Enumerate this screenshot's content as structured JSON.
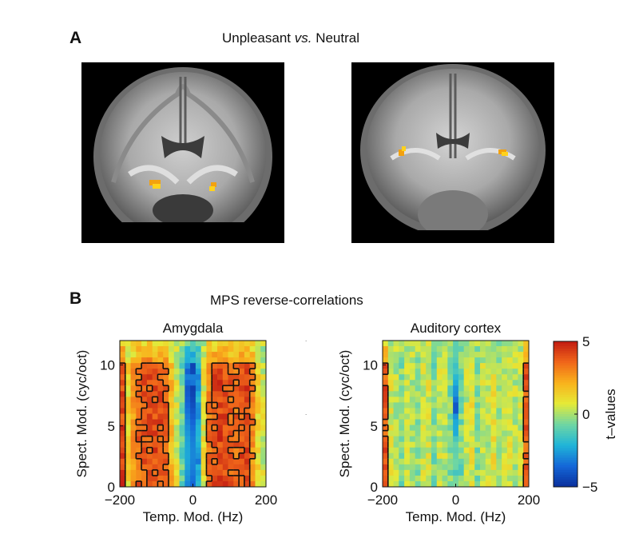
{
  "figure": {
    "panel_a": {
      "letter": "A",
      "title_prefix": "Unpleasant ",
      "title_italic": "vs.",
      "title_suffix": " Neutral"
    },
    "panel_b": {
      "letter": "B",
      "title": "MPS reverse-correlations"
    }
  },
  "chart_data": [
    {
      "type": "heatmap",
      "title": "Amygdala",
      "xlabel": "Temp. Mod. (Hz)",
      "ylabel": "Spect. Mod. (cyc/oct)",
      "xlim": [
        -200,
        200
      ],
      "ylim": [
        0,
        12
      ],
      "xticks": [
        "−200",
        "0",
        "200"
      ],
      "yticks": [
        "0",
        "5",
        "10"
      ],
      "x_columns": [
        -193,
        -178,
        -163,
        -148,
        -133,
        -118,
        -104,
        -89,
        -74,
        -59,
        -44,
        -30,
        -15,
        0,
        15,
        30,
        44,
        59,
        74,
        89,
        104,
        118,
        133,
        148,
        163,
        178,
        193
      ],
      "column_profile_t": [
        4.2,
        1.2,
        2.5,
        3.6,
        3.8,
        3.9,
        4.1,
        4.0,
        3.6,
        2.0,
        0.6,
        -0.8,
        -3.2,
        -3.8,
        -2.6,
        0.8,
        3.3,
        3.9,
        4.2,
        4.0,
        3.7,
        3.5,
        3.9,
        4.1,
        3.0,
        1.2,
        0.5
      ],
      "contour_t": 3.4
    },
    {
      "type": "heatmap",
      "title": "Auditory cortex",
      "xlabel": "Temp. Mod. (Hz)",
      "ylabel": "Spect. Mod. (cyc/oct)",
      "xlim": [
        -200,
        200
      ],
      "ylim": [
        0,
        12
      ],
      "xticks": [
        "−200",
        "0",
        "200"
      ],
      "yticks": [
        "0",
        "5",
        "10"
      ],
      "x_columns": [
        -193,
        -178,
        -163,
        -148,
        -133,
        -118,
        -104,
        -89,
        -74,
        -59,
        -44,
        -30,
        -15,
        0,
        15,
        30,
        44,
        59,
        74,
        89,
        104,
        118,
        133,
        148,
        163,
        178,
        193
      ],
      "column_profile_t": [
        3.8,
        0.5,
        0.2,
        -0.4,
        0.4,
        0.2,
        -0.3,
        0.5,
        0.6,
        -0.5,
        0.3,
        0.2,
        -0.5,
        -3.5,
        -0.6,
        0.3,
        0.7,
        -0.4,
        0.5,
        0.3,
        0.9,
        -0.2,
        0.4,
        0.6,
        0.2,
        0.3,
        3.8
      ],
      "contour_t": 3.4
    }
  ],
  "colorbar": {
    "label": "t–values",
    "range": [
      -5,
      5
    ],
    "ticks": [
      "5",
      "0",
      "−5"
    ],
    "colormap": [
      "#0a2f9c",
      "#1467d8",
      "#20b5d8",
      "#6fd6a3",
      "#e5ea37",
      "#f9b21c",
      "#f0661a",
      "#c21b12"
    ]
  },
  "brain_images": [
    {
      "name": "coronal slice through amygdala"
    },
    {
      "name": "coronal slice through auditory cortex"
    }
  ]
}
